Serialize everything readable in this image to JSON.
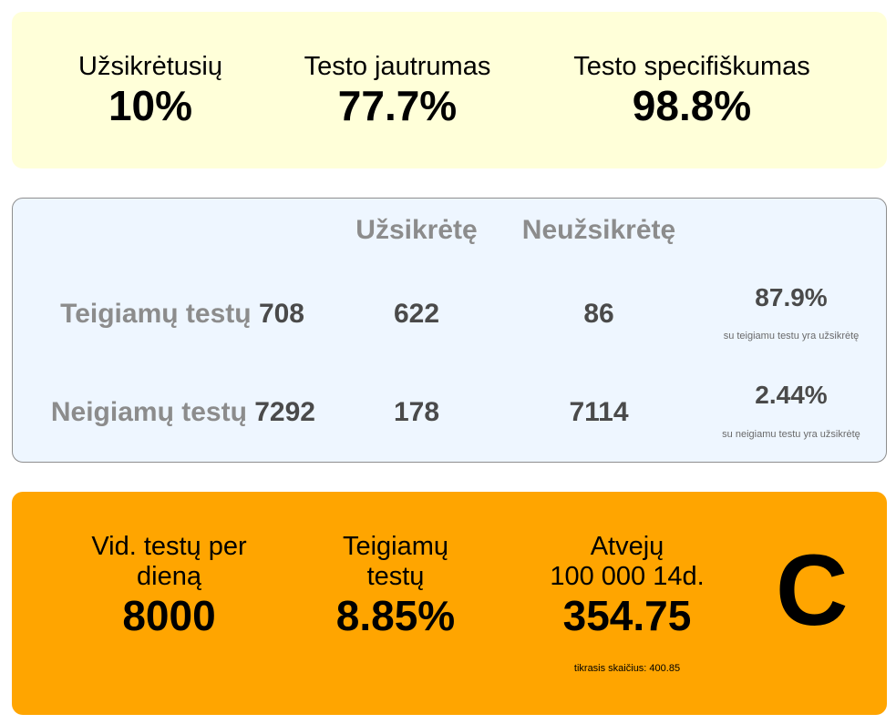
{
  "top": {
    "infected": {
      "label": "Užsikrėtusių",
      "value": "10%"
    },
    "sensitivity": {
      "label": "Testo jautrumas",
      "value": "77.7%"
    },
    "specificity": {
      "label": "Testo specifiškumas",
      "value": "98.8%"
    }
  },
  "table": {
    "col_infected": "Užsikrėtę",
    "col_not_infected": "Neužsikrėtę",
    "rows": [
      {
        "label": "Teigiamų testų",
        "total": "708",
        "infected": "622",
        "not_infected": "86",
        "pct": "87.9%",
        "note": "su teigiamu testu yra užsikrėtę"
      },
      {
        "label": "Neigiamų testų",
        "total": "7292",
        "infected": "178",
        "not_infected": "7114",
        "pct": "2.44%",
        "note": "su neigiamu testu yra užsikrėtę"
      }
    ]
  },
  "bottom": {
    "tests_per_day": {
      "label_line1": "Vid. testų per",
      "label_line2": "dieną",
      "value": "8000"
    },
    "positive": {
      "label_line1": "Teigiamų",
      "label_line2": "testų",
      "value": "8.85%"
    },
    "cases": {
      "label_line1": "Atvejų",
      "label_line2": "100 000 14d.",
      "value": "354.75",
      "note": "tikrasis skaičius: 400.85"
    },
    "grade": "C"
  }
}
